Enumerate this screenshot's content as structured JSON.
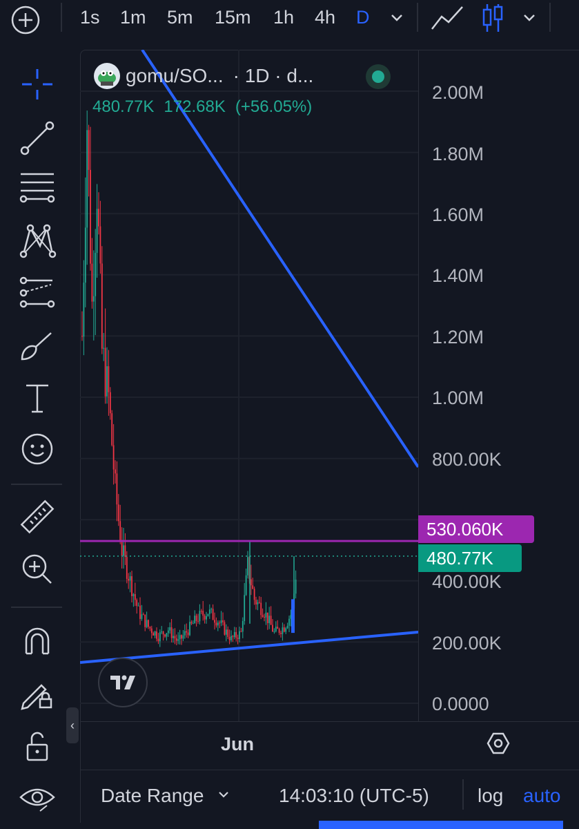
{
  "toolbar": {
    "timeframes": [
      "1s",
      "1m",
      "5m",
      "15m",
      "1h",
      "4h",
      "D"
    ],
    "active_timeframe": "D"
  },
  "legend": {
    "symbol": "gomu/SO...",
    "meta": "· 1D · d...",
    "last_price": "480.77K",
    "change": "172.68K",
    "change_pct": "(+56.05%)"
  },
  "price_axis": {
    "ticks": [
      "2.00M",
      "1.80M",
      "1.60M",
      "1.40M",
      "1.20M",
      "1.00M",
      "800.00K",
      "400.00K",
      "200.00K",
      "0.0000"
    ],
    "purple_level_tag": "530.060K",
    "current_price_tag": "480.77K"
  },
  "time_axis": {
    "label": "Jun"
  },
  "bottom": {
    "date_range": "Date Range",
    "clock": "14:03:10 (UTC-5)",
    "log": "log",
    "auto": "auto"
  },
  "colors": {
    "background": "#131722",
    "up": "#22ab94",
    "down": "#f23645",
    "trendline": "#2962ff",
    "level_line": "#9c27b0",
    "accent": "#2962ff"
  },
  "chart_data": {
    "type": "candlestick",
    "ylim": [
      0,
      2100000
    ],
    "horizontal_level": 530060,
    "current_price": 480770,
    "change": 172680,
    "change_pct": 56.05
  }
}
